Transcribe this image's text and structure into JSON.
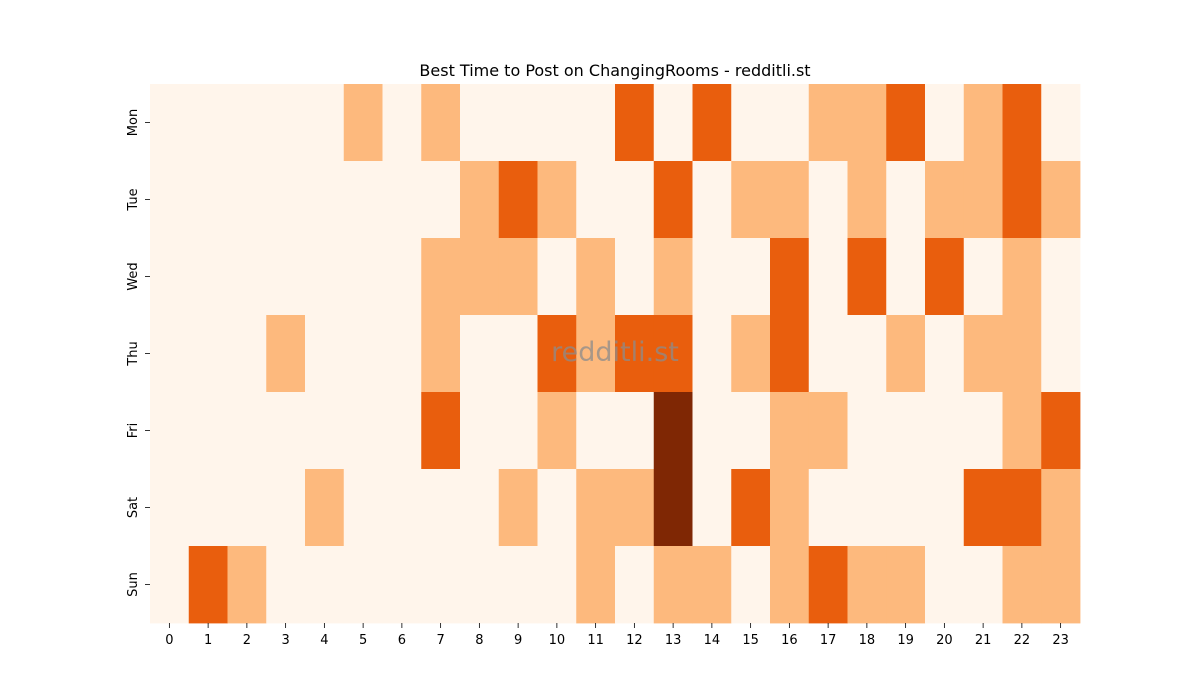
{
  "chart_data": {
    "type": "heatmap",
    "title": "Best Time to Post on ChangingRooms - redditli.st",
    "watermark": "redditli.st",
    "xlabel": "",
    "ylabel": "",
    "x_categories": [
      "0",
      "1",
      "2",
      "3",
      "4",
      "5",
      "6",
      "7",
      "8",
      "9",
      "10",
      "11",
      "12",
      "13",
      "14",
      "15",
      "16",
      "17",
      "18",
      "19",
      "20",
      "21",
      "22",
      "23"
    ],
    "y_categories": [
      "Mon",
      "Tue",
      "Wed",
      "Thu",
      "Fri",
      "Sat",
      "Sun"
    ],
    "values": [
      [
        0,
        0,
        0,
        0,
        0,
        1,
        0,
        1,
        0,
        0,
        0,
        0,
        2,
        0,
        2,
        0,
        0,
        1,
        1,
        2,
        0,
        1,
        2,
        0
      ],
      [
        0,
        0,
        0,
        0,
        0,
        0,
        0,
        0,
        1,
        2,
        1,
        0,
        0,
        2,
        0,
        1,
        1,
        0,
        1,
        0,
        1,
        1,
        2,
        1
      ],
      [
        0,
        0,
        0,
        0,
        0,
        0,
        0,
        1,
        1,
        1,
        0,
        1,
        0,
        1,
        0,
        0,
        2,
        0,
        2,
        0,
        2,
        0,
        1,
        0
      ],
      [
        0,
        0,
        0,
        1,
        0,
        0,
        0,
        1,
        0,
        0,
        2,
        1,
        2,
        2,
        0,
        1,
        2,
        0,
        0,
        1,
        0,
        1,
        1,
        0
      ],
      [
        0,
        0,
        0,
        0,
        0,
        0,
        0,
        2,
        0,
        0,
        1,
        0,
        0,
        3,
        0,
        0,
        1,
        1,
        0,
        0,
        0,
        0,
        1,
        2
      ],
      [
        0,
        0,
        0,
        0,
        1,
        0,
        0,
        0,
        0,
        1,
        0,
        1,
        1,
        3,
        0,
        2,
        1,
        0,
        0,
        0,
        0,
        2,
        2,
        1
      ],
      [
        0,
        2,
        1,
        0,
        0,
        0,
        0,
        0,
        0,
        0,
        0,
        1,
        0,
        1,
        1,
        0,
        1,
        2,
        1,
        1,
        0,
        0,
        1,
        1
      ]
    ],
    "value_range": [
      0,
      3
    ],
    "colormap": "Oranges",
    "colors": [
      "#fff5eb",
      "#fdb97d",
      "#e95e0d",
      "#7f2704"
    ],
    "grid": false,
    "legend": "none"
  }
}
